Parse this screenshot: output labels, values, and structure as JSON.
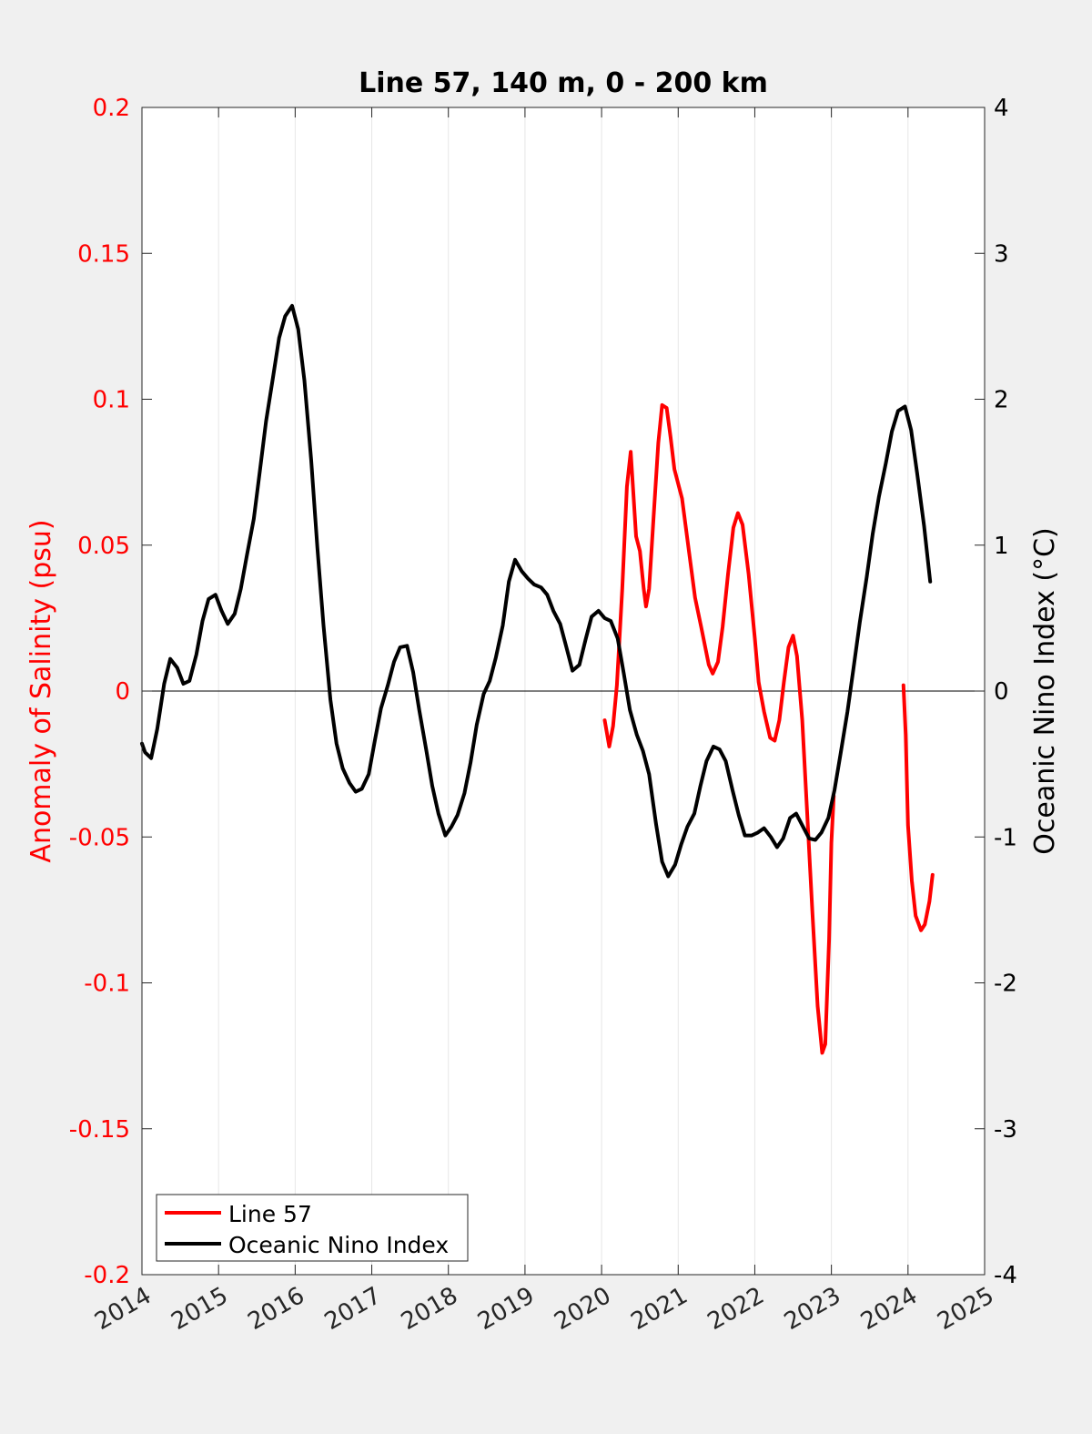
{
  "chart_data": {
    "type": "line",
    "title": "Line 57, 140 m, 0 - 200 km",
    "xlabel": "",
    "ylabel_left": "Anomaly of Salinity (psu)",
    "ylabel_right": "Oceanic Nino Index (°C)",
    "xlim": [
      2014,
      2025
    ],
    "ylim_left": [
      -0.2,
      0.2
    ],
    "ylim_right": [
      -4,
      4
    ],
    "x_ticks": [
      "2014",
      "2015",
      "2016",
      "2017",
      "2018",
      "2019",
      "2020",
      "2021",
      "2022",
      "2023",
      "2024",
      "2025"
    ],
    "y_ticks_left": [
      "0.2",
      "0.15",
      "0.1",
      "0.05",
      "0",
      "-0.05",
      "-0.1",
      "-0.15",
      "-0.2"
    ],
    "y_ticks_right": [
      "4",
      "3",
      "2",
      "1",
      "0",
      "-1",
      "-2",
      "-3",
      "-4"
    ],
    "grid": "vertical",
    "zero_line": true,
    "legend_position": "bottom-left",
    "colors": {
      "salinity": "#ff0000",
      "oni": "#000000",
      "left_axis": "#ff0000",
      "right_axis": "#000000"
    },
    "series": [
      {
        "name": "Line 57",
        "axis": "left",
        "color": "#ff0000",
        "segments": [
          [
            [
              2020.04,
              -0.01
            ],
            [
              2020.1,
              -0.019
            ],
            [
              2020.15,
              -0.012
            ],
            [
              2020.2,
              0.002
            ],
            [
              2020.27,
              0.035
            ],
            [
              2020.33,
              0.07
            ],
            [
              2020.38,
              0.082
            ],
            [
              2020.45,
              0.053
            ],
            [
              2020.5,
              0.048
            ],
            [
              2020.55,
              0.035
            ],
            [
              2020.58,
              0.029
            ],
            [
              2020.62,
              0.035
            ],
            [
              2020.68,
              0.06
            ],
            [
              2020.74,
              0.085
            ],
            [
              2020.79,
              0.098
            ],
            [
              2020.85,
              0.097
            ],
            [
              2020.9,
              0.087
            ],
            [
              2020.95,
              0.076
            ],
            [
              2021.05,
              0.066
            ],
            [
              2021.15,
              0.046
            ],
            [
              2021.22,
              0.032
            ],
            [
              2021.3,
              0.022
            ],
            [
              2021.4,
              0.009
            ],
            [
              2021.45,
              0.006
            ],
            [
              2021.52,
              0.01
            ],
            [
              2021.58,
              0.022
            ],
            [
              2021.65,
              0.04
            ],
            [
              2021.72,
              0.056
            ],
            [
              2021.78,
              0.061
            ],
            [
              2021.84,
              0.057
            ],
            [
              2021.92,
              0.04
            ],
            [
              2022.0,
              0.018
            ],
            [
              2022.05,
              0.003
            ],
            [
              2022.12,
              -0.007
            ],
            [
              2022.2,
              -0.016
            ],
            [
              2022.26,
              -0.017
            ],
            [
              2022.32,
              -0.01
            ],
            [
              2022.38,
              0.003
            ],
            [
              2022.44,
              0.015
            ],
            [
              2022.5,
              0.019
            ],
            [
              2022.55,
              0.012
            ],
            [
              2022.62,
              -0.01
            ],
            [
              2022.68,
              -0.04
            ],
            [
              2022.75,
              -0.075
            ],
            [
              2022.82,
              -0.108
            ],
            [
              2022.88,
              -0.124
            ],
            [
              2022.92,
              -0.121
            ],
            [
              2022.97,
              -0.085
            ],
            [
              2023.0,
              -0.052
            ],
            [
              2023.03,
              -0.036
            ]
          ],
          [
            [
              2023.94,
              0.002
            ],
            [
              2023.97,
              -0.015
            ],
            [
              2024.0,
              -0.046
            ],
            [
              2024.05,
              -0.065
            ],
            [
              2024.1,
              -0.077
            ],
            [
              2024.17,
              -0.082
            ],
            [
              2024.22,
              -0.08
            ],
            [
              2024.28,
              -0.072
            ],
            [
              2024.32,
              -0.063
            ]
          ]
        ]
      },
      {
        "name": "Oceanic Nino Index",
        "axis": "right",
        "color": "#000000",
        "segments": [
          [
            [
              2014.0,
              -0.36
            ],
            [
              2014.04,
              -0.42
            ],
            [
              2014.12,
              -0.46
            ],
            [
              2014.2,
              -0.26
            ],
            [
              2014.29,
              0.05
            ],
            [
              2014.37,
              0.22
            ],
            [
              2014.46,
              0.16
            ],
            [
              2014.54,
              0.05
            ],
            [
              2014.62,
              0.07
            ],
            [
              2014.71,
              0.25
            ],
            [
              2014.79,
              0.48
            ],
            [
              2014.87,
              0.63
            ],
            [
              2014.96,
              0.66
            ],
            [
              2015.04,
              0.55
            ],
            [
              2015.12,
              0.46
            ],
            [
              2015.21,
              0.53
            ],
            [
              2015.29,
              0.7
            ],
            [
              2015.37,
              0.93
            ],
            [
              2015.46,
              1.18
            ],
            [
              2015.54,
              1.51
            ],
            [
              2015.62,
              1.85
            ],
            [
              2015.71,
              2.15
            ],
            [
              2015.79,
              2.42
            ],
            [
              2015.87,
              2.57
            ],
            [
              2015.96,
              2.64
            ],
            [
              2016.04,
              2.48
            ],
            [
              2016.12,
              2.13
            ],
            [
              2016.21,
              1.58
            ],
            [
              2016.29,
              0.98
            ],
            [
              2016.37,
              0.45
            ],
            [
              2016.46,
              -0.06
            ],
            [
              2016.54,
              -0.36
            ],
            [
              2016.62,
              -0.53
            ],
            [
              2016.71,
              -0.63
            ],
            [
              2016.79,
              -0.69
            ],
            [
              2016.87,
              -0.67
            ],
            [
              2016.96,
              -0.57
            ],
            [
              2017.04,
              -0.34
            ],
            [
              2017.12,
              -0.12
            ],
            [
              2017.21,
              0.04
            ],
            [
              2017.29,
              0.2
            ],
            [
              2017.37,
              0.3
            ],
            [
              2017.46,
              0.31
            ],
            [
              2017.54,
              0.13
            ],
            [
              2017.62,
              -0.13
            ],
            [
              2017.71,
              -0.4
            ],
            [
              2017.79,
              -0.65
            ],
            [
              2017.87,
              -0.84
            ],
            [
              2017.96,
              -0.99
            ],
            [
              2018.04,
              -0.93
            ],
            [
              2018.12,
              -0.85
            ],
            [
              2018.21,
              -0.7
            ],
            [
              2018.29,
              -0.49
            ],
            [
              2018.37,
              -0.23
            ],
            [
              2018.46,
              -0.02
            ],
            [
              2018.54,
              0.07
            ],
            [
              2018.62,
              0.23
            ],
            [
              2018.71,
              0.45
            ],
            [
              2018.79,
              0.75
            ],
            [
              2018.87,
              0.9
            ],
            [
              2018.96,
              0.82
            ],
            [
              2019.04,
              0.77
            ],
            [
              2019.12,
              0.73
            ],
            [
              2019.21,
              0.71
            ],
            [
              2019.29,
              0.66
            ],
            [
              2019.37,
              0.55
            ],
            [
              2019.46,
              0.46
            ],
            [
              2019.54,
              0.3
            ],
            [
              2019.62,
              0.14
            ],
            [
              2019.71,
              0.18
            ],
            [
              2019.79,
              0.35
            ],
            [
              2019.87,
              0.51
            ],
            [
              2019.96,
              0.55
            ],
            [
              2020.04,
              0.5
            ],
            [
              2020.12,
              0.48
            ],
            [
              2020.21,
              0.36
            ],
            [
              2020.29,
              0.12
            ],
            [
              2020.37,
              -0.13
            ],
            [
              2020.46,
              -0.3
            ],
            [
              2020.54,
              -0.41
            ],
            [
              2020.62,
              -0.57
            ],
            [
              2020.71,
              -0.91
            ],
            [
              2020.79,
              -1.17
            ],
            [
              2020.87,
              -1.27
            ],
            [
              2020.96,
              -1.19
            ],
            [
              2021.04,
              -1.05
            ],
            [
              2021.12,
              -0.93
            ],
            [
              2021.21,
              -0.84
            ],
            [
              2021.29,
              -0.65
            ],
            [
              2021.37,
              -0.48
            ],
            [
              2021.46,
              -0.38
            ],
            [
              2021.54,
              -0.4
            ],
            [
              2021.62,
              -0.48
            ],
            [
              2021.71,
              -0.68
            ],
            [
              2021.79,
              -0.85
            ],
            [
              2021.87,
              -0.99
            ],
            [
              2021.96,
              -0.99
            ],
            [
              2022.04,
              -0.97
            ],
            [
              2022.12,
              -0.94
            ],
            [
              2022.21,
              -1.0
            ],
            [
              2022.29,
              -1.07
            ],
            [
              2022.37,
              -1.01
            ],
            [
              2022.46,
              -0.87
            ],
            [
              2022.54,
              -0.84
            ],
            [
              2022.62,
              -0.92
            ],
            [
              2022.71,
              -1.01
            ],
            [
              2022.79,
              -1.02
            ],
            [
              2022.87,
              -0.97
            ],
            [
              2022.96,
              -0.87
            ],
            [
              2023.04,
              -0.68
            ],
            [
              2023.12,
              -0.43
            ],
            [
              2023.21,
              -0.14
            ],
            [
              2023.29,
              0.16
            ],
            [
              2023.37,
              0.47
            ],
            [
              2023.46,
              0.78
            ],
            [
              2023.54,
              1.08
            ],
            [
              2023.62,
              1.33
            ],
            [
              2023.71,
              1.56
            ],
            [
              2023.79,
              1.78
            ],
            [
              2023.87,
              1.92
            ],
            [
              2023.96,
              1.95
            ],
            [
              2024.04,
              1.79
            ],
            [
              2024.12,
              1.49
            ],
            [
              2024.21,
              1.13
            ],
            [
              2024.29,
              0.75
            ]
          ]
        ]
      }
    ]
  }
}
